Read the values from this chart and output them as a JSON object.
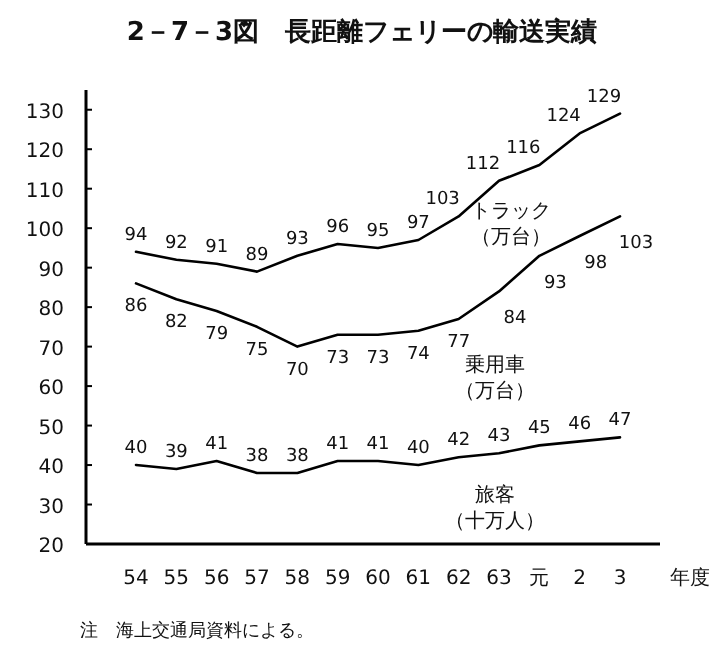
{
  "chart_data": {
    "type": "line",
    "title": "2－7－3図　長距離フェリーの輸送実績",
    "xlabel": "年度",
    "categories": [
      "54",
      "55",
      "56",
      "57",
      "58",
      "59",
      "60",
      "61",
      "62",
      "63",
      "元",
      "2",
      "3"
    ],
    "series": [
      {
        "name": "トラック（万台）",
        "color": "#000000",
        "values": [
          94,
          92,
          91,
          89,
          93,
          96,
          95,
          97,
          103,
          112,
          116,
          124,
          129
        ]
      },
      {
        "name": "乗用車（万台）",
        "color": "#000000",
        "values": [
          86,
          82,
          79,
          75,
          70,
          73,
          73,
          74,
          77,
          84,
          93,
          98,
          103
        ]
      },
      {
        "name": "旅客（十万人）",
        "color": "#000000",
        "values": [
          40,
          39,
          41,
          38,
          38,
          41,
          41,
          40,
          42,
          43,
          45,
          46,
          47
        ]
      }
    ],
    "ylim": [
      20,
      135
    ],
    "yticks": [
      20,
      30,
      40,
      50,
      60,
      70,
      80,
      90,
      100,
      110,
      120,
      130
    ],
    "data_labels": true,
    "grid": false,
    "marker": "none",
    "line_style": "solid",
    "annotations": [
      "注　海上交通局資料による。"
    ]
  }
}
